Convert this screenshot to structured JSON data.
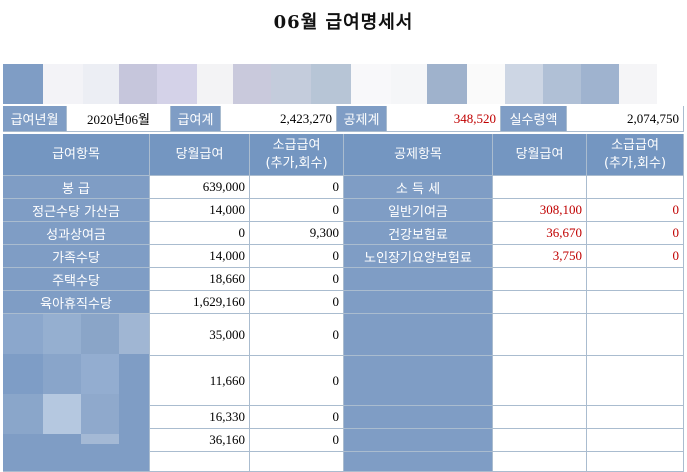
{
  "title": "06월 급여명세서",
  "summary": {
    "period_label": "급여년월",
    "period_value": "2020년06월",
    "total_pay_label": "급여계",
    "total_pay_value": "2,423,270",
    "total_deduct_label": "공제계",
    "total_deduct_value": "348,520",
    "net_pay_label": "실수령액",
    "net_pay_value": "2,074,750"
  },
  "headers": {
    "pay_item": "급여항목",
    "pay_current": "당월급여",
    "pay_retro_1": "소급급여",
    "pay_retro_2": "(추가,회수)",
    "deduct_item": "공제항목",
    "deduct_current": "당월급여",
    "deduct_retro_1": "소급급여",
    "deduct_retro_2": "(추가,회수)"
  },
  "pay_rows": [
    {
      "label": "봉          급",
      "current": "639,000",
      "retro": "0"
    },
    {
      "label": "정근수당 가산금",
      "current": "14,000",
      "retro": "0"
    },
    {
      "label": "성과상여금",
      "current": "0",
      "retro": "9,300"
    },
    {
      "label": "가족수당",
      "current": "14,000",
      "retro": "0"
    },
    {
      "label": "주택수당",
      "current": "18,660",
      "retro": "0"
    },
    {
      "label": "육아휴직수당",
      "current": "1,629,160",
      "retro": "0"
    },
    {
      "label": "",
      "current": "35,000",
      "retro": "0"
    },
    {
      "label": "",
      "current": "11,660",
      "retro": "0"
    },
    {
      "label": "",
      "current": "16,330",
      "retro": "0"
    },
    {
      "label": "",
      "current": "36,160",
      "retro": "0"
    }
  ],
  "deduct_rows": [
    {
      "label": "소 득 세",
      "current": "",
      "retro": ""
    },
    {
      "label": "일반기여금",
      "current": "308,100",
      "retro": "0"
    },
    {
      "label": "건강보험료",
      "current": "36,670",
      "retro": "0"
    },
    {
      "label": "노인장기요양보험료",
      "current": "3,750",
      "retro": "0"
    }
  ],
  "colors": {
    "header_blue": "#7496c1",
    "label_blue": "#7f9dc5",
    "deduction_red": "#c00000"
  }
}
